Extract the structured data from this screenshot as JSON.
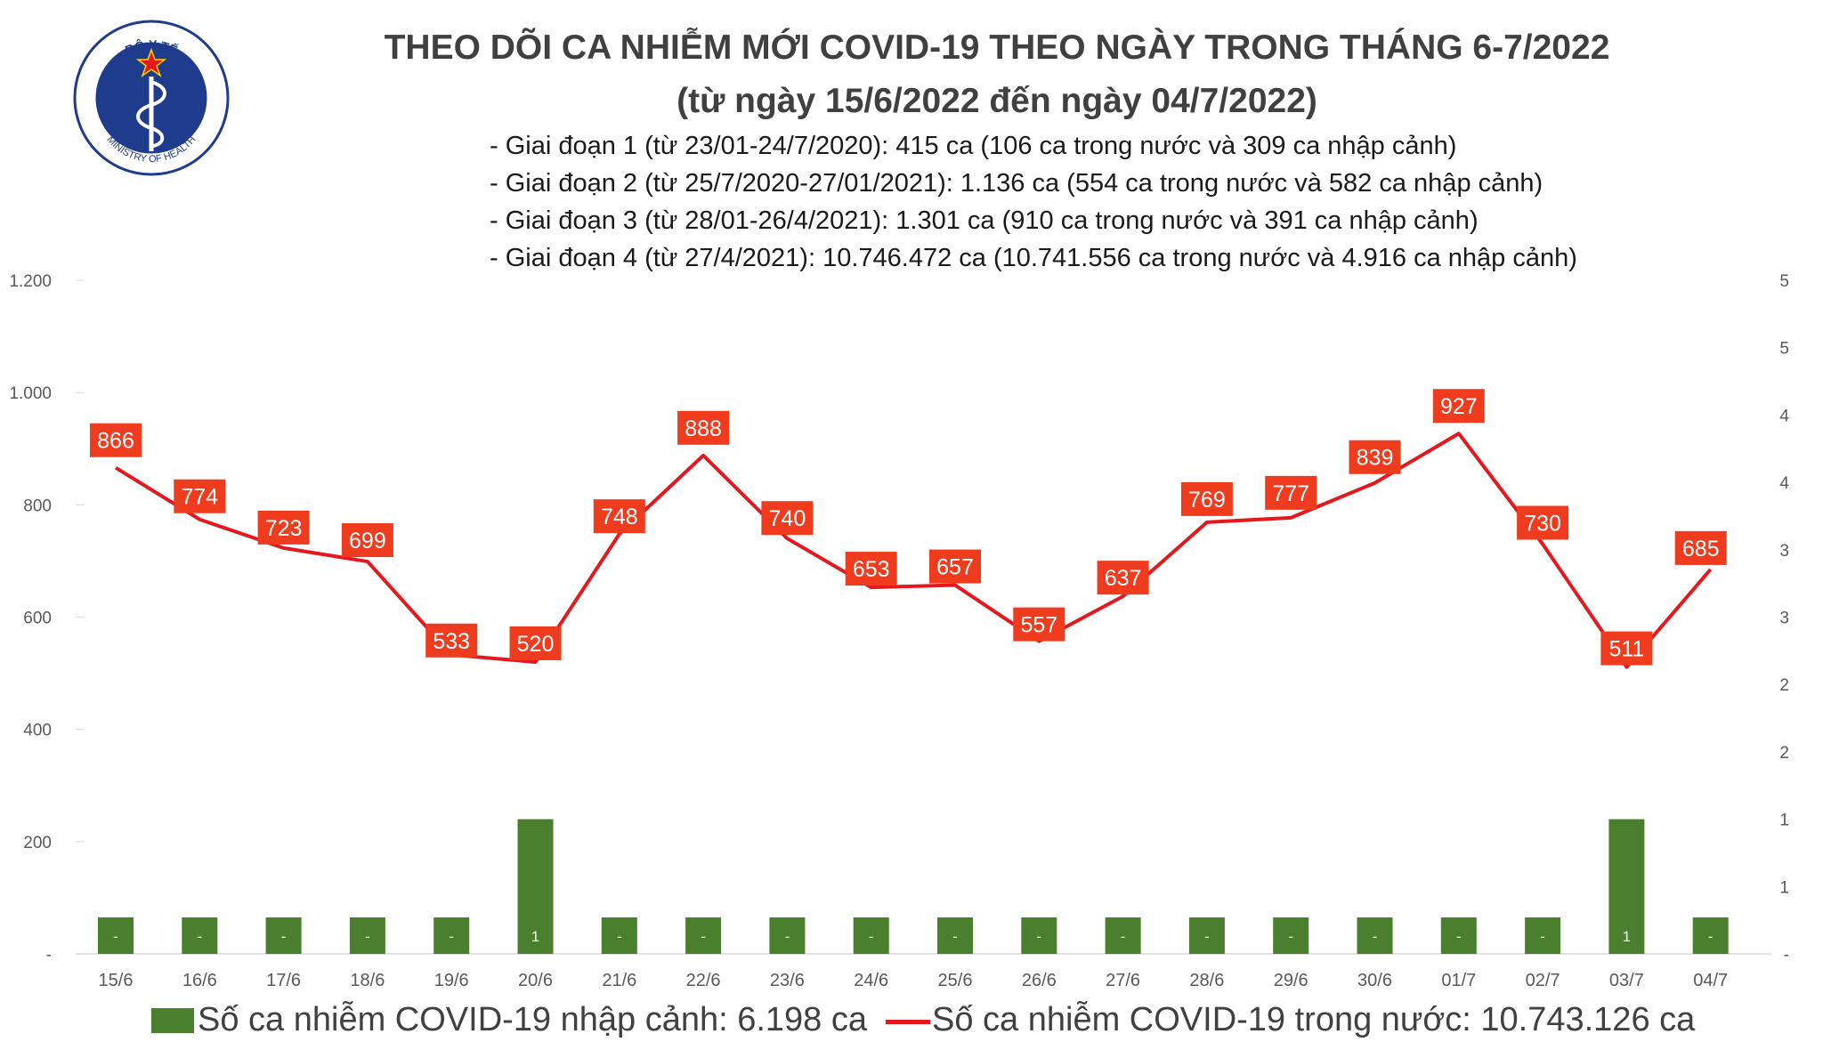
{
  "header": {
    "title_line1": "THEO DÕI CA NHIỄM MỚI COVID-19 THEO NGÀY TRONG THÁNG 6-7/2022",
    "title_line2": "(từ ngày 15/6/2022 đến ngày 04/7/2022)",
    "phases": [
      "- Giai đoạn 1 (từ 23/01-24/7/2020): 415 ca (106 ca trong nước và 309 ca nhập cảnh)",
      "- Giai đoạn 2 (từ 25/7/2020-27/01/2021): 1.136 ca (554 ca trong nước và 582 ca nhập cảnh)",
      "- Giai đoạn 3 (từ 28/01-26/4/2021): 1.301 ca (910 ca trong nước và 391 ca nhập cảnh)",
      "- Giai đoạn 4 (từ 27/4/2021): 10.746.472 ca (10.741.556 ca trong nước và 4.916 ca nhập cảnh)"
    ]
  },
  "logo": {
    "top_text": "BỘ Y TẾ",
    "bottom_text": "MINISTRY OF HEALTH"
  },
  "legend": {
    "bar_label": "Số ca nhiễm COVID-19 nhập cảnh: 6.198 ca",
    "line_label": "Số ca nhiễm COVID-19 trong nước: 10.743.126 ca"
  },
  "colors": {
    "line": "#e5181e",
    "label_bg": "#f03c1e",
    "bar": "#4a7f2e",
    "axis_text": "#595959",
    "grid": "#d9d9d9",
    "title": "#404040"
  },
  "chart_data": {
    "type": "bar+line",
    "categories": [
      "15/6",
      "16/6",
      "17/6",
      "18/6",
      "19/6",
      "20/6",
      "21/6",
      "22/6",
      "23/6",
      "24/6",
      "25/6",
      "26/6",
      "27/6",
      "28/6",
      "29/6",
      "30/6",
      "01/7",
      "02/7",
      "03/7",
      "04/7"
    ],
    "series": [
      {
        "name": "Số ca nhiễm COVID-19 trong nước: 10.743.126 ca",
        "type": "line",
        "axis": "left",
        "values": [
          866,
          774,
          723,
          699,
          533,
          520,
          748,
          888,
          740,
          653,
          657,
          557,
          637,
          769,
          777,
          839,
          927,
          730,
          511,
          685
        ]
      },
      {
        "name": "Số ca nhiễm COVID-19 nhập cảnh: 6.198 ca",
        "type": "bar",
        "axis": "right",
        "values": [
          0,
          0,
          0,
          0,
          0,
          1,
          0,
          0,
          0,
          0,
          0,
          0,
          0,
          0,
          0,
          0,
          0,
          0,
          1,
          0
        ],
        "labels": [
          "-",
          "-",
          "-",
          "-",
          "-",
          "1",
          "-",
          "-",
          "-",
          "-",
          "-",
          "-",
          "-",
          "-",
          "-",
          "-",
          "-",
          "-",
          "1",
          "-"
        ]
      }
    ],
    "left_axis": {
      "ticks": [
        "-",
        "200",
        "400",
        "600",
        "800",
        "1.000",
        "1.200"
      ],
      "range": [
        0,
        1200
      ]
    },
    "right_axis": {
      "ticks": [
        "-",
        "1",
        "1",
        "2",
        "2",
        "3",
        "3",
        "4",
        "4",
        "5",
        "5"
      ],
      "range": [
        0,
        5
      ]
    },
    "legend_position": "bottom"
  }
}
